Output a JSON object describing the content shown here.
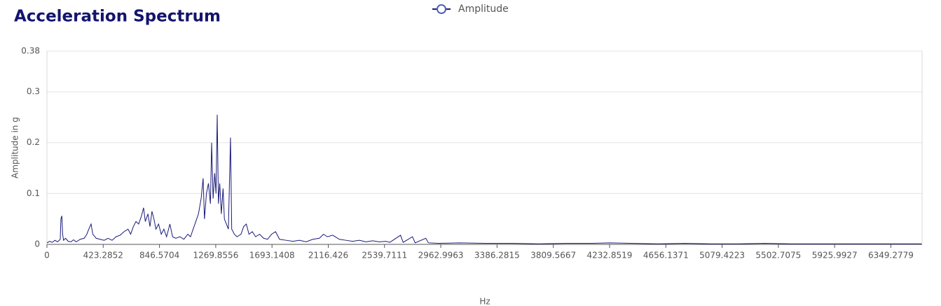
{
  "chart_data": {
    "type": "line",
    "title": "Acceleration Spectrum",
    "x_label": "Hz",
    "y_label": "Amplitude in g",
    "x": [
      0,
      20,
      40,
      60,
      80,
      100,
      105,
      112,
      118,
      125,
      140,
      160,
      180,
      200,
      220,
      250,
      280,
      300,
      315,
      332,
      345,
      370,
      400,
      430,
      460,
      490,
      520,
      550,
      580,
      610,
      630,
      650,
      670,
      690,
      710,
      727,
      740,
      760,
      775,
      790,
      805,
      820,
      840,
      860,
      880,
      900,
      925,
      945,
      970,
      1000,
      1030,
      1060,
      1080,
      1100,
      1120,
      1140,
      1160,
      1175,
      1185,
      1200,
      1215,
      1230,
      1239,
      1250,
      1262,
      1272,
      1281,
      1290,
      1300,
      1312,
      1325,
      1335,
      1350,
      1365,
      1381,
      1390,
      1410,
      1430,
      1460,
      1480,
      1500,
      1520,
      1545,
      1570,
      1600,
      1630,
      1660,
      1690,
      1720,
      1750,
      1800,
      1850,
      1900,
      1950,
      2000,
      2050,
      2080,
      2110,
      2150,
      2200,
      2250,
      2300,
      2350,
      2400,
      2450,
      2500,
      2550,
      2580,
      2660,
      2680,
      2750,
      2770,
      2850,
      2870,
      2950,
      3100,
      3300,
      3500,
      3700,
      3900,
      4100,
      4232,
      4400,
      4600,
      4800,
      5000,
      5200,
      5400,
      5600,
      5800,
      6000,
      6200,
      6400,
      6580
    ],
    "series": [
      {
        "name": "Amplitude",
        "color": "#1a1a7a",
        "values": [
          0.003,
          0.006,
          0.004,
          0.008,
          0.005,
          0.01,
          0.05,
          0.056,
          0.02,
          0.008,
          0.012,
          0.006,
          0.005,
          0.009,
          0.005,
          0.01,
          0.012,
          0.02,
          0.03,
          0.04,
          0.02,
          0.012,
          0.01,
          0.008,
          0.012,
          0.008,
          0.015,
          0.018,
          0.025,
          0.03,
          0.02,
          0.035,
          0.045,
          0.04,
          0.055,
          0.072,
          0.045,
          0.06,
          0.035,
          0.065,
          0.05,
          0.03,
          0.04,
          0.02,
          0.03,
          0.015,
          0.04,
          0.015,
          0.012,
          0.015,
          0.01,
          0.02,
          0.015,
          0.03,
          0.045,
          0.06,
          0.09,
          0.13,
          0.05,
          0.1,
          0.12,
          0.08,
          0.2,
          0.09,
          0.14,
          0.1,
          0.255,
          0.08,
          0.12,
          0.06,
          0.11,
          0.05,
          0.04,
          0.03,
          0.21,
          0.03,
          0.02,
          0.015,
          0.02,
          0.035,
          0.04,
          0.02,
          0.025,
          0.015,
          0.02,
          0.012,
          0.01,
          0.02,
          0.025,
          0.01,
          0.008,
          0.006,
          0.008,
          0.005,
          0.01,
          0.012,
          0.02,
          0.015,
          0.018,
          0.01,
          0.008,
          0.006,
          0.008,
          0.005,
          0.007,
          0.005,
          0.006,
          0.004,
          0.018,
          0.004,
          0.015,
          0.003,
          0.012,
          0.003,
          0.002,
          0.003,
          0.002,
          0.002,
          0.001,
          0.002,
          0.002,
          0.003,
          0.002,
          0.001,
          0.002,
          0.001,
          0.001,
          0.002,
          0.001,
          0.001,
          0.001,
          0.001,
          0.001,
          0.001
        ]
      }
    ],
    "xlim": [
      0,
      6584
    ],
    "xticks": [
      0,
      423.2852,
      846.5704,
      1269.8556,
      1693.1408,
      2116.426,
      2539.7111,
      2962.9963,
      3386.2815,
      3809.5667,
      4232.8519,
      4656.1371,
      5079.4223,
      5502.7075,
      5925.9927,
      6349.2779
    ],
    "ylim": [
      0,
      0.38
    ],
    "yticks": [
      0,
      0.1,
      0.2,
      0.3,
      0.38
    ],
    "grid": true
  }
}
